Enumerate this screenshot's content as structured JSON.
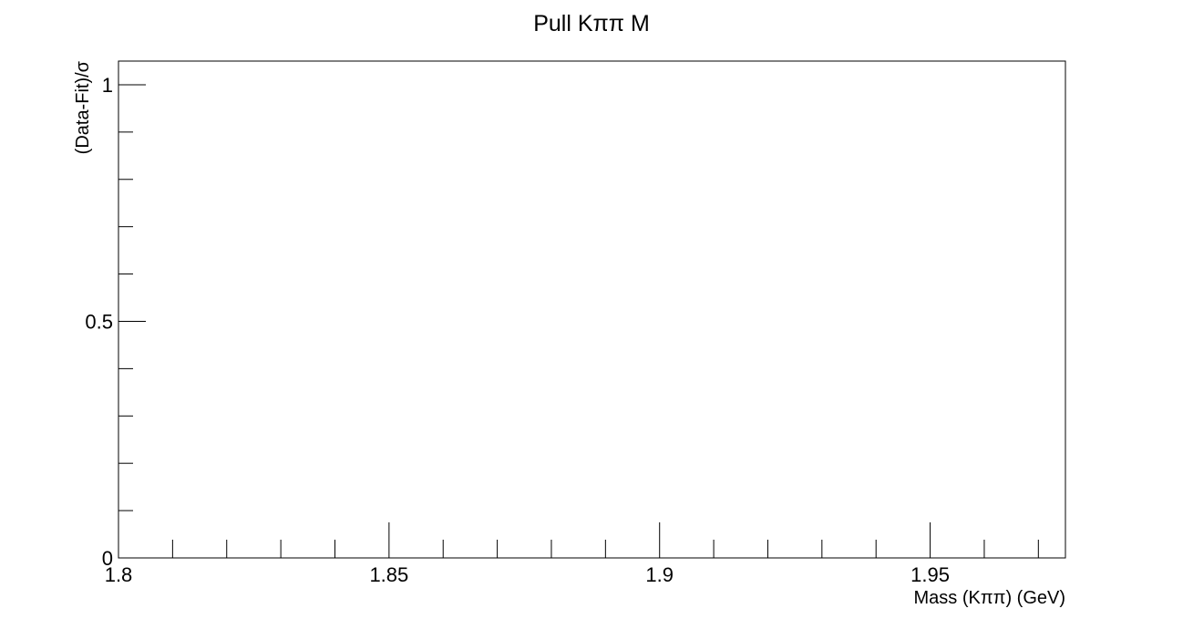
{
  "chart_data": {
    "type": "line",
    "title": "Pull Kππ M",
    "xlabel": "Mass (Kππ) (GeV)",
    "ylabel": "(Data-Fit)/σ",
    "xlim": [
      1.8,
      1.975
    ],
    "ylim": [
      0,
      1.05
    ],
    "x_ticks": [
      1.8,
      1.85,
      1.9,
      1.95
    ],
    "x_tick_labels": [
      "1.8",
      "1.85",
      "1.9",
      "1.95"
    ],
    "x_minor_step": 0.01,
    "y_ticks": [
      0,
      0.5,
      1
    ],
    "y_tick_labels": [
      "0",
      "0.5",
      "1"
    ],
    "y_minor_step": 0.1,
    "grid": false,
    "series": []
  }
}
